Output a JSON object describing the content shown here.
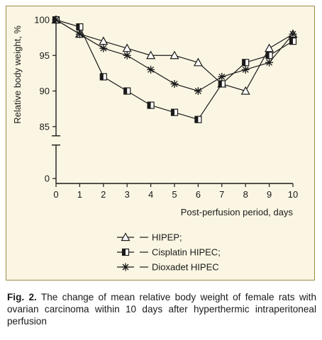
{
  "chart_data": {
    "type": "line",
    "xlabel": "Post-perfusion period, days",
    "ylabel": "Relative body weight, %",
    "x": [
      0,
      1,
      2,
      3,
      4,
      5,
      6,
      7,
      8,
      9,
      10
    ],
    "xlim": [
      0,
      10
    ],
    "ylim": [
      85,
      100
    ],
    "y_axis_break": true,
    "y_ticks": [
      100,
      95,
      90,
      85,
      0
    ],
    "grid": false,
    "legend_position": "bottom-center",
    "series": [
      {
        "name": "HIPEP;",
        "marker": "triangle",
        "values": [
          100,
          98,
          97,
          96,
          95,
          95,
          94,
          91,
          90,
          96,
          98
        ]
      },
      {
        "name": "Cisplatin HIPEC;",
        "marker": "half-filled-square",
        "values": [
          100,
          99,
          92,
          90,
          88,
          87,
          86,
          91,
          94,
          95,
          97
        ]
      },
      {
        "name": "Dioxadet HIPEC",
        "marker": "asterisk",
        "values": [
          100,
          98,
          96,
          95,
          93,
          91,
          90,
          92,
          93,
          94,
          98
        ]
      }
    ]
  },
  "caption": {
    "label": "Fig. 2.",
    "text": "The change of mean relative body weight of female rats with ovarian carcinoma within 10 days after hyperthermic intraperitoneal perfusion"
  },
  "colors": {
    "panel": "#fbf6e3",
    "border": "#9a8a4a",
    "ink": "#1a1a1a"
  }
}
